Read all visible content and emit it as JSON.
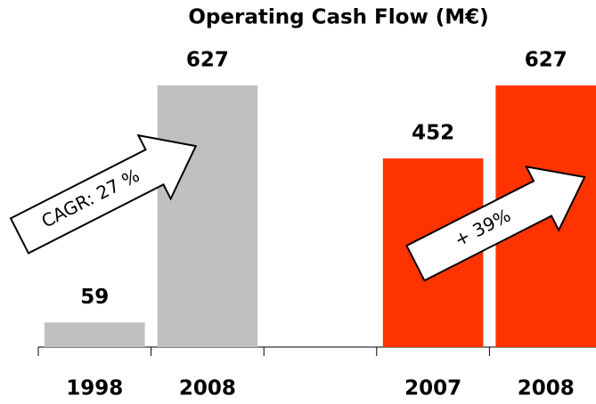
{
  "chart_data": {
    "type": "bar",
    "title": "Operating Cash Flow (M€)",
    "categories": [
      "1998",
      "2008",
      null,
      "2007",
      "2008"
    ],
    "values": [
      59,
      627,
      null,
      452,
      627
    ],
    "colors": [
      "#c0c0c0",
      "#c0c0c0",
      null,
      "#ff3300",
      "#ff3300"
    ],
    "annotations": [
      "CAGR: 27 %",
      "+ 39%"
    ]
  }
}
